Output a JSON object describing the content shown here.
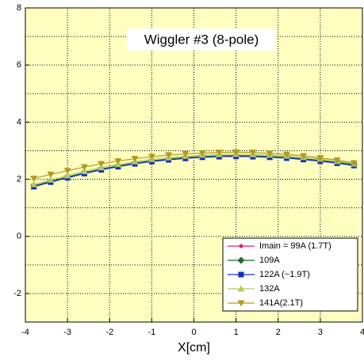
{
  "chart_data": {
    "type": "line",
    "title": "Wiggler #3 (8-pole)",
    "x_label": "X[cm]",
    "x": [
      -3.8,
      -3.4,
      -3.0,
      -2.6,
      -2.2,
      -1.8,
      -1.4,
      -1.0,
      -0.6,
      -0.2,
      0.2,
      0.6,
      1.0,
      1.4,
      1.8,
      2.2,
      2.6,
      3.0,
      3.4,
      3.8
    ],
    "series": [
      {
        "name": "Imain = 99A (1.7T)",
        "color": "#e8206e",
        "marker": "circle",
        "values": [
          1.76,
          1.92,
          2.07,
          2.22,
          2.35,
          2.46,
          2.56,
          2.64,
          2.7,
          2.75,
          2.79,
          2.81,
          2.82,
          2.81,
          2.79,
          2.76,
          2.71,
          2.65,
          2.58,
          2.5
        ]
      },
      {
        "name": "109A",
        "color": "#1a6b30",
        "marker": "diamond",
        "values": [
          1.77,
          1.93,
          2.08,
          2.23,
          2.36,
          2.47,
          2.57,
          2.65,
          2.71,
          2.76,
          2.8,
          2.82,
          2.83,
          2.82,
          2.8,
          2.77,
          2.72,
          2.66,
          2.59,
          2.51
        ]
      },
      {
        "name": "122A (~1.9T)",
        "color": "#1030c0",
        "marker": "square",
        "values": [
          1.74,
          1.9,
          2.05,
          2.2,
          2.33,
          2.44,
          2.54,
          2.62,
          2.68,
          2.73,
          2.77,
          2.79,
          2.8,
          2.79,
          2.77,
          2.74,
          2.69,
          2.63,
          2.56,
          2.48
        ]
      },
      {
        "name": "132A",
        "color": "#b8c860",
        "marker": "triangle-up",
        "values": [
          1.82,
          1.98,
          2.13,
          2.28,
          2.41,
          2.52,
          2.62,
          2.7,
          2.76,
          2.81,
          2.85,
          2.87,
          2.88,
          2.87,
          2.85,
          2.82,
          2.77,
          2.71,
          2.63,
          2.54
        ]
      },
      {
        "name": "141A(2.1T)",
        "color": "#b09a20",
        "marker": "triangle-down",
        "values": [
          2.03,
          2.17,
          2.3,
          2.43,
          2.54,
          2.64,
          2.72,
          2.79,
          2.85,
          2.89,
          2.92,
          2.94,
          2.95,
          2.94,
          2.91,
          2.87,
          2.82,
          2.75,
          2.67,
          2.57
        ]
      }
    ],
    "xlim": [
      -4,
      4
    ],
    "ylim": [
      -3,
      8
    ],
    "xticks": [
      -4,
      -3,
      -2,
      -1,
      0,
      1,
      2,
      3,
      4
    ],
    "yticks": [
      -2,
      0,
      2,
      4,
      6,
      8
    ],
    "yminorticks": [
      -1,
      1,
      3,
      5,
      7
    ],
    "grid": true,
    "background": "#ffffc0",
    "legend": "lower-right"
  }
}
